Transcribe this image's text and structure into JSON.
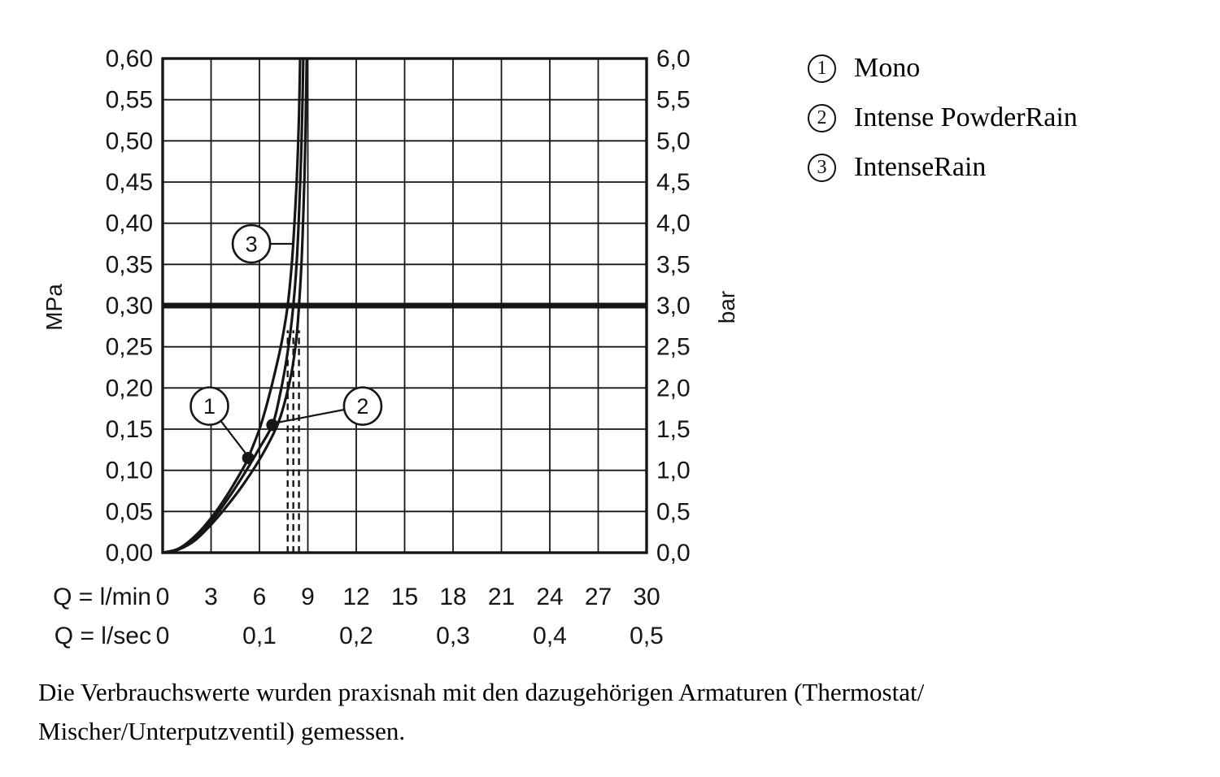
{
  "page": {
    "background": "#ffffff"
  },
  "legend": {
    "items": [
      {
        "num": "1",
        "label": "Mono"
      },
      {
        "num": "2",
        "label": "Intense PowderRain"
      },
      {
        "num": "3",
        "label": "IntenseRain"
      }
    ]
  },
  "footnote": {
    "line1": "Die Verbrauchswerte wurden praxisnah mit den dazugehörigen Armaturen (Thermostat/",
    "line2": "Mischer/Unterputzventil) gemessen."
  },
  "chart_data": {
    "type": "line",
    "title": "",
    "grid": true,
    "legend_position": "top-right",
    "colors": {
      "ink": "#161616"
    },
    "x_axis": {
      "range_lmin": [
        0,
        30
      ],
      "row_lmin": {
        "label": "Q = l/min",
        "ticks": [
          0,
          3,
          6,
          9,
          12,
          15,
          18,
          21,
          24,
          27,
          30
        ]
      },
      "row_lsec": {
        "label": "Q = l/sec",
        "ticks": [
          {
            "x": 0,
            "label": "0"
          },
          {
            "x": 6,
            "label": "0,1"
          },
          {
            "x": 12,
            "label": "0,2"
          },
          {
            "x": 18,
            "label": "0,3"
          },
          {
            "x": 24,
            "label": "0,4"
          },
          {
            "x": 30,
            "label": "0,5"
          }
        ]
      }
    },
    "y_axis_left": {
      "label": "MPa",
      "range": [
        0,
        0.6
      ],
      "step": 0.05,
      "tick_labels_top_to_bottom": [
        "0,60",
        "0,55",
        "0,50",
        "0,45",
        "0,40",
        "0,35",
        "0,30",
        "0,25",
        "0,20",
        "0,15",
        "0,10",
        "0,05",
        "0,00"
      ]
    },
    "y_axis_right": {
      "label": "bar",
      "range": [
        0,
        6
      ],
      "step": 0.5,
      "tick_labels_top_to_bottom": [
        "6,0",
        "5,5",
        "5,0",
        "4,5",
        "4,0",
        "3,5",
        "3,0",
        "2,5",
        "2,0",
        "1,5",
        "1,0",
        "0,5",
        "0,0"
      ]
    },
    "reference_line": {
      "mpa": 0.3,
      "bar": 3.0
    },
    "dashed_flow_lines": [
      {
        "x_lmin": 7.75,
        "y_top_mpa": 0.27
      },
      {
        "x_lmin": 8.1,
        "y_top_mpa": 0.27
      },
      {
        "x_lmin": 8.45,
        "y_top_mpa": 0.27
      }
    ],
    "series": [
      {
        "num": "1",
        "name": "Mono",
        "points": [
          [
            0,
            0
          ],
          [
            1,
            0.005
          ],
          [
            2,
            0.02
          ],
          [
            3,
            0.042
          ],
          [
            4,
            0.07
          ],
          [
            5,
            0.103
          ],
          [
            5.3,
            0.115
          ],
          [
            6,
            0.15
          ],
          [
            6.5,
            0.183
          ],
          [
            7,
            0.222
          ],
          [
            7.4,
            0.258
          ],
          [
            7.75,
            0.3
          ],
          [
            8.0,
            0.35
          ],
          [
            8.2,
            0.41
          ],
          [
            8.35,
            0.47
          ],
          [
            8.45,
            0.53
          ],
          [
            8.52,
            0.6
          ]
        ]
      },
      {
        "num": "2",
        "name": "Intense PowderRain",
        "points": [
          [
            0,
            0
          ],
          [
            1,
            0.004
          ],
          [
            2,
            0.017
          ],
          [
            3,
            0.038
          ],
          [
            4,
            0.064
          ],
          [
            5,
            0.094
          ],
          [
            6,
            0.127
          ],
          [
            6.8,
            0.155
          ],
          [
            7.2,
            0.185
          ],
          [
            7.6,
            0.225
          ],
          [
            7.9,
            0.265
          ],
          [
            8.1,
            0.3
          ],
          [
            8.3,
            0.35
          ],
          [
            8.45,
            0.41
          ],
          [
            8.58,
            0.48
          ],
          [
            8.67,
            0.55
          ],
          [
            8.72,
            0.6
          ]
        ]
      },
      {
        "num": "3",
        "name": "IntenseRain",
        "points": [
          [
            0,
            0
          ],
          [
            1,
            0.004
          ],
          [
            2,
            0.015
          ],
          [
            3,
            0.034
          ],
          [
            4,
            0.057
          ],
          [
            5,
            0.083
          ],
          [
            6,
            0.113
          ],
          [
            7,
            0.15
          ],
          [
            7.5,
            0.178
          ],
          [
            8,
            0.22
          ],
          [
            8.3,
            0.262
          ],
          [
            8.45,
            0.3
          ],
          [
            8.6,
            0.35
          ],
          [
            8.72,
            0.41
          ],
          [
            8.82,
            0.48
          ],
          [
            8.89,
            0.55
          ],
          [
            8.93,
            0.6
          ]
        ]
      }
    ],
    "markers": [
      {
        "x_lmin": 5.3,
        "y_mpa": 0.115
      },
      {
        "x_lmin": 6.8,
        "y_mpa": 0.155
      }
    ],
    "callouts": [
      {
        "num": "1",
        "center": [
          2.9,
          0.178
        ],
        "target": [
          5.25,
          0.118
        ]
      },
      {
        "num": "2",
        "center": [
          12.4,
          0.178
        ],
        "target": [
          6.85,
          0.157
        ]
      },
      {
        "num": "3",
        "center": [
          5.5,
          0.375
        ],
        "target": [
          8.15,
          0.375
        ]
      }
    ]
  }
}
